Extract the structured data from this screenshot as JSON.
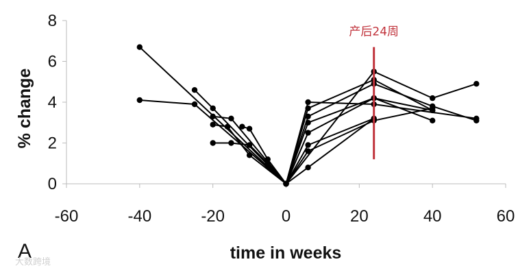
{
  "chart_data": {
    "type": "line",
    "panel_label": "A",
    "xlabel": "time in weeks",
    "ylabel": "% change",
    "xlim": [
      -60,
      60
    ],
    "ylim": [
      0,
      8
    ],
    "xticks": [
      -60,
      -40,
      -20,
      0,
      20,
      40,
      60
    ],
    "yticks": [
      0,
      2,
      4,
      6,
      8
    ],
    "grid": false,
    "annotation": {
      "label": "产后24周",
      "x": 24,
      "y_from": 1.2,
      "y_to": 6.7,
      "color": "#c0313a"
    },
    "series": [
      {
        "x": [
          -40,
          0,
          24,
          40,
          52
        ],
        "y": [
          6.7,
          0,
          5.5,
          4.2,
          4.9
        ]
      },
      {
        "x": [
          -40,
          -25,
          0,
          6,
          24,
          52
        ],
        "y": [
          4.1,
          3.9,
          0,
          4.0,
          3.9,
          3.2
        ]
      },
      {
        "x": [
          -25,
          -20,
          0,
          6,
          24,
          40
        ],
        "y": [
          4.6,
          3.7,
          0,
          3.7,
          5.1,
          3.6
        ]
      },
      {
        "x": [
          -20,
          -15,
          0,
          6,
          24,
          40,
          52
        ],
        "y": [
          3.3,
          3.2,
          0,
          3.3,
          4.9,
          3.8,
          3.1
        ]
      },
      {
        "x": [
          -20,
          -16,
          -10,
          0,
          6,
          24,
          40
        ],
        "y": [
          2.9,
          2.8,
          1.4,
          0,
          3.0,
          4.2,
          3.1
        ]
      },
      {
        "x": [
          -20,
          -15,
          -10,
          -5,
          0,
          6,
          24,
          40
        ],
        "y": [
          2.0,
          2.0,
          1.9,
          1.0,
          0,
          2.5,
          4.2,
          3.6
        ]
      },
      {
        "x": [
          -12,
          -10,
          -5,
          0,
          6,
          24
        ],
        "y": [
          2.8,
          2.7,
          1.2,
          0,
          1.9,
          3.2
        ]
      },
      {
        "x": [
          -5,
          0,
          6,
          24,
          40
        ],
        "y": [
          0.9,
          0,
          1.6,
          3.1,
          3.7
        ]
      },
      {
        "x": [
          0,
          6,
          24
        ],
        "y": [
          0,
          0.8,
          3.2
        ]
      }
    ]
  },
  "watermark": "大数跨境"
}
